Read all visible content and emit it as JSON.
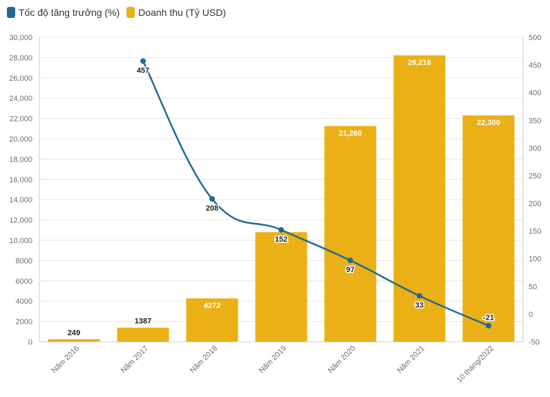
{
  "chart_data": {
    "type": "bar",
    "categories": [
      "Năm 2016",
      "Năm 2017",
      "Năm 2018",
      "Năm 2019",
      "Năm 2020",
      "Năm 2021",
      "10 tháng/2022"
    ],
    "series": [
      {
        "name": "Tốc độ tăng trưởng (%)",
        "type": "line",
        "axis": "right",
        "color": "#1f6a94",
        "values": [
          null,
          457,
          208,
          152,
          97,
          33,
          -21
        ],
        "labels": [
          "",
          "457",
          "208",
          "152",
          "97",
          "33",
          "-21"
        ]
      },
      {
        "name": "Doanh thu (Tỷ USD)",
        "type": "bar",
        "axis": "left",
        "color": "#ebb016",
        "values": [
          249,
          1387,
          4272,
          10800,
          21260,
          28216,
          22300
        ],
        "labels": [
          "249",
          "1387",
          "4272",
          "",
          "21,260",
          "28,216",
          "22,300"
        ]
      }
    ],
    "y_left": {
      "min": 0,
      "max": 30000,
      "ticks": [
        0,
        2000,
        4000,
        6000,
        8000,
        10000,
        12000,
        14000,
        16000,
        18000,
        20000,
        22000,
        24000,
        26000,
        28000,
        30000
      ],
      "tick_labels": [
        "0",
        "2000",
        "4000",
        "6000",
        "8000",
        "10,000",
        "12,000",
        "14,000",
        "16,000",
        "18,000",
        "20,000",
        "22,000",
        "24,000",
        "26,000",
        "28,000",
        "30,000"
      ]
    },
    "y_right": {
      "min": -50,
      "max": 500,
      "ticks": [
        -50,
        0,
        50,
        100,
        150,
        200,
        250,
        300,
        350,
        400,
        450,
        500
      ],
      "tick_labels": [
        "-50",
        "0",
        "50",
        "100",
        "150",
        "200",
        "250",
        "300",
        "350",
        "400",
        "450",
        "500"
      ]
    },
    "legend_position": "top-left",
    "grid": true
  }
}
